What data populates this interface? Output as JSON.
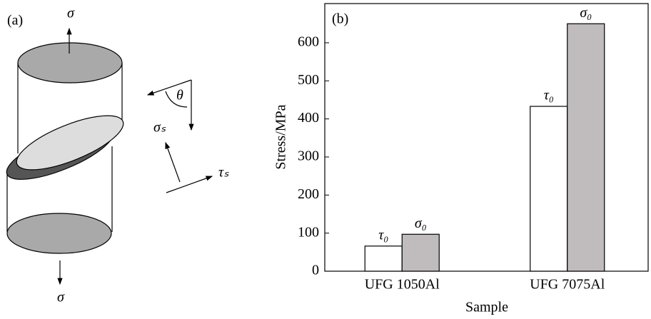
{
  "panel_a": {
    "label": "(a)",
    "sigma_top": "σ",
    "sigma_bottom": "σ",
    "theta": "θ",
    "sigma_s": "σₛ",
    "tau_s": "τₛ"
  },
  "chart_data": {
    "type": "bar",
    "panel_label": "(b)",
    "x_label": "Sample",
    "y_label": "Stress/MPa",
    "categories": [
      "UFG 1050Al",
      "UFG 7075Al"
    ],
    "series": [
      {
        "name": "τ₀",
        "color": "#ffffff",
        "values": [
          66,
          433
        ]
      },
      {
        "name": "σ₀",
        "color": "#c0bcbe",
        "values": [
          97,
          650
        ]
      }
    ],
    "ylim": [
      0,
      703
    ],
    "yticks": [
      0,
      100,
      200,
      300,
      400,
      500,
      600
    ]
  }
}
